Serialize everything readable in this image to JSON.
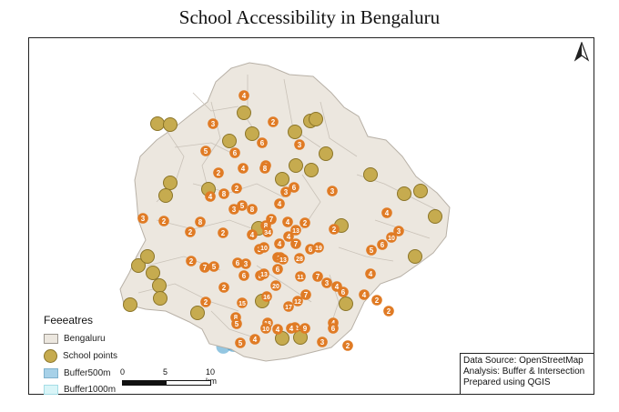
{
  "title": "School Accessibility in Bengaluru",
  "colors": {
    "land": "#ece7df",
    "ward_border": "#c9c2b8",
    "school": "#c6ab4f",
    "buffer500": "#3a97c9",
    "buffer1000": "#d9f5f8",
    "count_label": "#e07b25"
  },
  "legend": {
    "title": "Feeeatres",
    "items": [
      {
        "label": "Bengaluru",
        "symbol": "polygon-fill"
      },
      {
        "label": "School points",
        "symbol": "circle"
      },
      {
        "label": "Buffer500m",
        "symbol": "polygon-fill"
      },
      {
        "label": "Buffer1000m",
        "symbol": "polygon-fill"
      }
    ]
  },
  "scale": {
    "labels": [
      "0",
      "5",
      "10 km"
    ]
  },
  "source": {
    "lines": [
      "Data Source: OpenStreetMap",
      "Analysis: Buffer & Intersection",
      "Prepared using QGIS"
    ]
  },
  "north_symbol": "north-arrow-icon",
  "count_labels": [
    "4",
    "3",
    "2",
    "6",
    "5",
    "6",
    "3",
    "2",
    "4",
    "2",
    "6",
    "2",
    "8",
    "8",
    "4",
    "3",
    "3",
    "4",
    "8",
    "2",
    "5",
    "7",
    "2",
    "3",
    "2",
    "2",
    "3",
    "8",
    "4",
    "6",
    "4",
    "8",
    "4",
    "34",
    "3",
    "13",
    "10",
    "4",
    "3",
    "7",
    "19",
    "6",
    "3",
    "2",
    "2",
    "6",
    "8",
    "11",
    "28",
    "7",
    "5",
    "4",
    "3",
    "10",
    "13",
    "6",
    "5",
    "6",
    "4",
    "2",
    "2",
    "6",
    "13",
    "20",
    "11",
    "7",
    "3",
    "4",
    "7",
    "12",
    "15",
    "16",
    "8",
    "17",
    "5",
    "18",
    "12",
    "4",
    "9",
    "3",
    "4",
    "6",
    "4",
    "10",
    "2",
    "5",
    "4",
    "4",
    "2",
    "2"
  ]
}
